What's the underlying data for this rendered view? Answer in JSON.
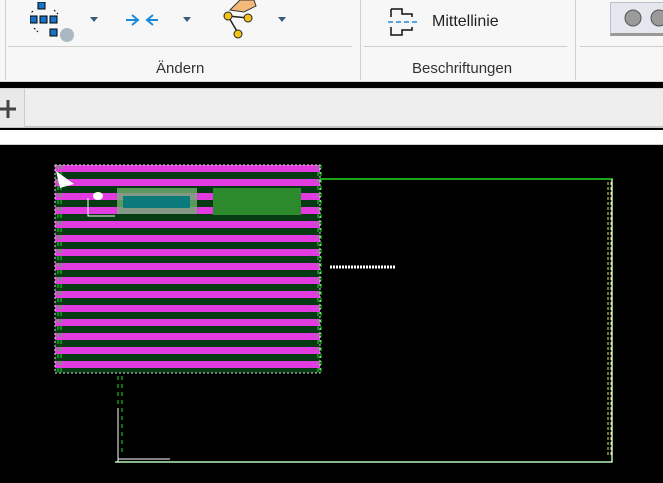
{
  "ribbon": {
    "groups": [
      {
        "label": "Ändern"
      },
      {
        "label": "Beschriftungen"
      }
    ],
    "tools": {
      "centerline_label": "Mittellinie"
    },
    "icons": [
      "array-icon",
      "align-icon",
      "edit-polyline-icon",
      "centerline-icon",
      "layer-icon"
    ]
  },
  "tabs": {
    "new_tab_icon": "plus-icon"
  },
  "colors": {
    "drawing_bg": "#000000",
    "hatch": "#e23be0",
    "frame": "#ffffff",
    "guide": "#22dd22"
  }
}
